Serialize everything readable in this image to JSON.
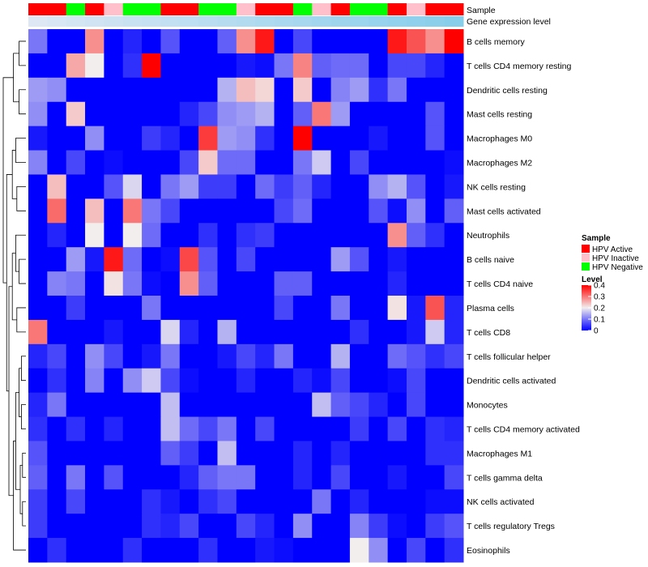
{
  "chart_data": {
    "type": "heatmap",
    "title": "",
    "column_annotations": [
      {
        "name": "Sample",
        "label": "Sample"
      },
      {
        "name": "Gene expression level",
        "label": "Gene expression level"
      }
    ],
    "sample_group_per_column": [
      "HPV Active",
      "HPV Active",
      "HPV Negative",
      "HPV Active",
      "HPV Inactive",
      "HPV Negative",
      "HPV Negative",
      "HPV Active",
      "HPV Active",
      "HPV Negative",
      "HPV Negative",
      "HPV Inactive",
      "HPV Active",
      "HPV Active",
      "HPV Negative",
      "HPV Inactive",
      "HPV Active",
      "HPV Negative",
      "HPV Negative",
      "HPV Active",
      "HPV Inactive",
      "HPV Active",
      "HPV Active"
    ],
    "sample_colors": {
      "HPV Active": "#ff0000",
      "HPV Inactive": "#ffc0cb",
      "HPV Negative": "#00ff00"
    },
    "expression_bar_start": "#dde8f4",
    "expression_bar_end": "#87ceeb",
    "rows": [
      "B cells memory",
      "T cells CD4 memory resting",
      "Dendritic cells resting",
      "Mast cells resting",
      "Macrophages M0",
      "Macrophages M2",
      "NK cells resting",
      "Mast cells activated",
      "Neutrophils",
      "B cells naive",
      "T cells CD4 naive",
      "Plasma cells",
      "T cells CD8",
      "T cells follicular helper",
      "Dendritic cells activated",
      "Monocytes",
      "T cells CD4 memory activated",
      "Macrophages M1",
      "T cells gamma delta",
      "NK cells activated",
      "T cells regulatory  Tregs",
      "Eosinophils"
    ],
    "n_columns": 23,
    "values": [
      [
        0.1,
        0,
        0,
        0.28,
        0,
        0.03,
        0,
        0.07,
        0,
        0,
        0.08,
        0.28,
        0.38,
        0,
        0.06,
        0,
        0,
        0,
        0,
        0.38,
        0.33,
        0.28,
        0.4
      ],
      [
        0,
        0,
        0.26,
        0.2,
        0,
        0.04,
        0.4,
        0,
        0,
        0,
        0,
        0.02,
        0.01,
        0.1,
        0.29,
        0.08,
        0.09,
        0.09,
        0,
        0.06,
        0.06,
        0.03,
        0
      ],
      [
        0.13,
        0.12,
        0,
        0,
        0,
        0,
        0,
        0,
        0,
        0,
        0.15,
        0.24,
        0.22,
        0,
        0.23,
        0,
        0.11,
        0.13,
        0.04,
        0.1,
        0,
        0,
        0
      ],
      [
        0.12,
        0,
        0.23,
        0,
        0,
        0,
        0,
        0,
        0.03,
        0.06,
        0.12,
        0.13,
        0.15,
        0,
        0.08,
        0.3,
        0.13,
        0,
        0,
        0,
        0,
        0.07,
        0
      ],
      [
        0.02,
        0,
        0,
        0.12,
        0,
        0,
        0.05,
        0.03,
        0,
        0.35,
        0.13,
        0.12,
        0.04,
        0,
        0.4,
        0,
        0,
        0,
        0.02,
        0,
        0,
        0.07,
        0
      ],
      [
        0.11,
        0,
        0.06,
        0,
        0.01,
        0,
        0,
        0,
        0.06,
        0.23,
        0.09,
        0.09,
        0,
        0,
        0.1,
        0.17,
        0,
        0.06,
        0,
        0,
        0,
        0,
        0.01
      ],
      [
        0,
        0.24,
        0,
        0,
        0.07,
        0.18,
        0,
        0.1,
        0.13,
        0.05,
        0.05,
        0,
        0.09,
        0.05,
        0.08,
        0.03,
        0,
        0,
        0.12,
        0.15,
        0.07,
        0,
        0.02
      ],
      [
        0,
        0.31,
        0,
        0.24,
        0,
        0.3,
        0.1,
        0.06,
        0,
        0,
        0,
        0,
        0,
        0.06,
        0.09,
        0,
        0,
        0,
        0.07,
        0.01,
        0.12,
        0,
        0.08
      ],
      [
        0,
        0.03,
        0,
        0.2,
        0,
        0.2,
        0.09,
        0,
        0,
        0.04,
        0,
        0.04,
        0.05,
        0,
        0,
        0,
        0,
        0,
        0,
        0.28,
        0.08,
        0.04,
        0
      ],
      [
        0,
        0,
        0.13,
        0.02,
        0.38,
        0.09,
        0,
        0.01,
        0.34,
        0.07,
        0,
        0.06,
        0,
        0,
        0,
        0,
        0.13,
        0.07,
        0,
        0.02,
        0,
        0,
        0
      ],
      [
        0,
        0.11,
        0.1,
        0,
        0.21,
        0.1,
        0.01,
        0,
        0.28,
        0.08,
        0,
        0,
        0,
        0.08,
        0.08,
        0,
        0,
        0,
        0,
        0.03,
        0,
        0,
        0
      ],
      [
        0,
        0,
        0.05,
        0,
        0,
        0,
        0.1,
        0,
        0,
        0,
        0,
        0,
        0,
        0.06,
        0,
        0,
        0.1,
        0,
        0,
        0.21,
        0.02,
        0.33,
        0.03
      ],
      [
        0.3,
        0,
        0,
        0,
        0.02,
        0,
        0,
        0.18,
        0.03,
        0,
        0.15,
        0,
        0,
        0,
        0,
        0,
        0,
        0.04,
        0,
        0,
        0.02,
        0.17,
        0.03
      ],
      [
        0.03,
        0.06,
        0,
        0.12,
        0.06,
        0,
        0.02,
        0.1,
        0,
        0,
        0.02,
        0.06,
        0.03,
        0.1,
        0,
        0,
        0.15,
        0,
        0,
        0.09,
        0.07,
        0.04,
        0.06
      ],
      [
        0,
        0.04,
        0,
        0.11,
        0,
        0.12,
        0.17,
        0.06,
        0.01,
        0,
        0,
        0.03,
        0,
        0,
        0.03,
        0.01,
        0.06,
        0,
        0,
        0.01,
        0.06,
        0,
        0
      ],
      [
        0.03,
        0.1,
        0,
        0,
        0,
        0,
        0,
        0.16,
        0,
        0,
        0,
        0,
        0,
        0,
        0,
        0.16,
        0.08,
        0.06,
        0.03,
        0,
        0.06,
        0,
        0
      ],
      [
        0.04,
        0,
        0.04,
        0,
        0.03,
        0,
        0,
        0.16,
        0.09,
        0.06,
        0.1,
        0,
        0.06,
        0,
        0,
        0,
        0,
        0.05,
        0,
        0.06,
        0,
        0.04,
        0.03
      ],
      [
        0.07,
        0,
        0,
        0,
        0,
        0,
        0,
        0.08,
        0.05,
        0,
        0.16,
        0,
        0,
        0,
        0.03,
        0,
        0.03,
        0,
        0,
        0,
        0,
        0.04,
        0.04
      ],
      [
        0.08,
        0,
        0.1,
        0,
        0.07,
        0,
        0,
        0,
        0.03,
        0.08,
        0.1,
        0.1,
        0,
        0,
        0.03,
        0,
        0.06,
        0,
        0,
        0.02,
        0,
        0,
        0.06
      ],
      [
        0.05,
        0,
        0.06,
        0,
        0,
        0,
        0.04,
        0.02,
        0,
        0.04,
        0.06,
        0,
        0,
        0,
        0,
        0.1,
        0,
        0.03,
        0,
        0,
        0,
        0.01,
        0.01
      ],
      [
        0.05,
        0,
        0,
        0,
        0,
        0,
        0.04,
        0.03,
        0.06,
        0,
        0,
        0.06,
        0.03,
        0,
        0.12,
        0,
        0,
        0.11,
        0.05,
        0.01,
        0,
        0.05,
        0.07
      ],
      [
        0,
        0.04,
        0,
        0,
        0,
        0.04,
        0,
        0,
        0,
        0.04,
        0,
        0,
        0.02,
        0.01,
        0,
        0,
        0,
        0.2,
        0.12,
        0,
        0.06,
        0,
        0.04
      ]
    ],
    "color_scale": {
      "min": 0,
      "max": 0.4,
      "stops": [
        {
          "value": 0,
          "color": "#0000ff"
        },
        {
          "value": 0.2,
          "color": "#f2eeee"
        },
        {
          "value": 0.4,
          "color": "#ff0000"
        }
      ]
    },
    "legend": {
      "sample_title": "Sample",
      "sample_entries": [
        {
          "label": "HPV Active",
          "color": "#ff0000"
        },
        {
          "label": "HPV Inactive",
          "color": "#ffc0cb"
        },
        {
          "label": "HPV Negative",
          "color": "#00ff00"
        }
      ],
      "level_title": "Level",
      "level_ticks": [
        {
          "value": 0.4,
          "label": "0.4"
        },
        {
          "value": 0.3,
          "label": "0.3"
        },
        {
          "value": 0.2,
          "label": "0.2"
        },
        {
          "value": 0.1,
          "label": "0.1"
        },
        {
          "value": 0,
          "label": "0"
        }
      ]
    },
    "row_dendrogram": [
      {
        "rows": [
          0,
          1
        ],
        "height": 0.3
      },
      {
        "rows": [
          2,
          3
        ],
        "height": 0.3
      },
      {
        "rows": [
          4,
          5
        ],
        "height": 0.45
      },
      {
        "rows": [
          6,
          7
        ],
        "height": 0.4
      },
      {
        "rows": [
          9,
          10
        ],
        "height": 0.3
      },
      {
        "rows": [
          13,
          14
        ],
        "height": 0.2
      },
      {
        "rows": [
          15,
          16
        ],
        "height": 0.2
      },
      {
        "rows": [
          17,
          18
        ],
        "height": 0.15
      },
      {
        "rows": [
          19,
          20
        ],
        "height": 0.15
      },
      {
        "rows": [
          8,
          9,
          10
        ],
        "height": 0.45
      },
      {
        "rows": [
          11,
          12
        ],
        "height": 0.4
      },
      {
        "rows": [
          17,
          18,
          19,
          20
        ],
        "height": 0.25
      },
      {
        "rows": [
          13,
          14,
          15,
          16
        ],
        "height": 0.3
      },
      {
        "rows": [
          13,
          14,
          15,
          16,
          17,
          18,
          19,
          20
        ],
        "height": 0.45
      },
      {
        "rows": [
          13,
          14,
          15,
          16,
          17,
          18,
          19,
          20,
          21
        ],
        "height": 0.55
      },
      {
        "rows": [
          0,
          1,
          2,
          3
        ],
        "height": 0.55
      },
      {
        "rows": [
          4,
          5,
          6,
          7
        ],
        "height": 0.6
      },
      {
        "rows": [
          8,
          9,
          10,
          11,
          12
        ],
        "height": 0.6
      },
      {
        "rows": [
          8,
          9,
          10,
          11,
          12,
          13,
          14,
          15,
          16,
          17,
          18,
          19,
          20,
          21
        ],
        "height": 0.75
      },
      {
        "rows": [
          4,
          5,
          6,
          7,
          8,
          9,
          10,
          11,
          12,
          13,
          14,
          15,
          16,
          17,
          18,
          19,
          20,
          21
        ],
        "height": 0.85
      },
      {
        "rows": [
          0,
          1,
          2,
          3,
          4,
          5,
          6,
          7,
          8,
          9,
          10,
          11,
          12,
          13,
          14,
          15,
          16,
          17,
          18,
          19,
          20,
          21
        ],
        "height": 1.0
      }
    ]
  }
}
